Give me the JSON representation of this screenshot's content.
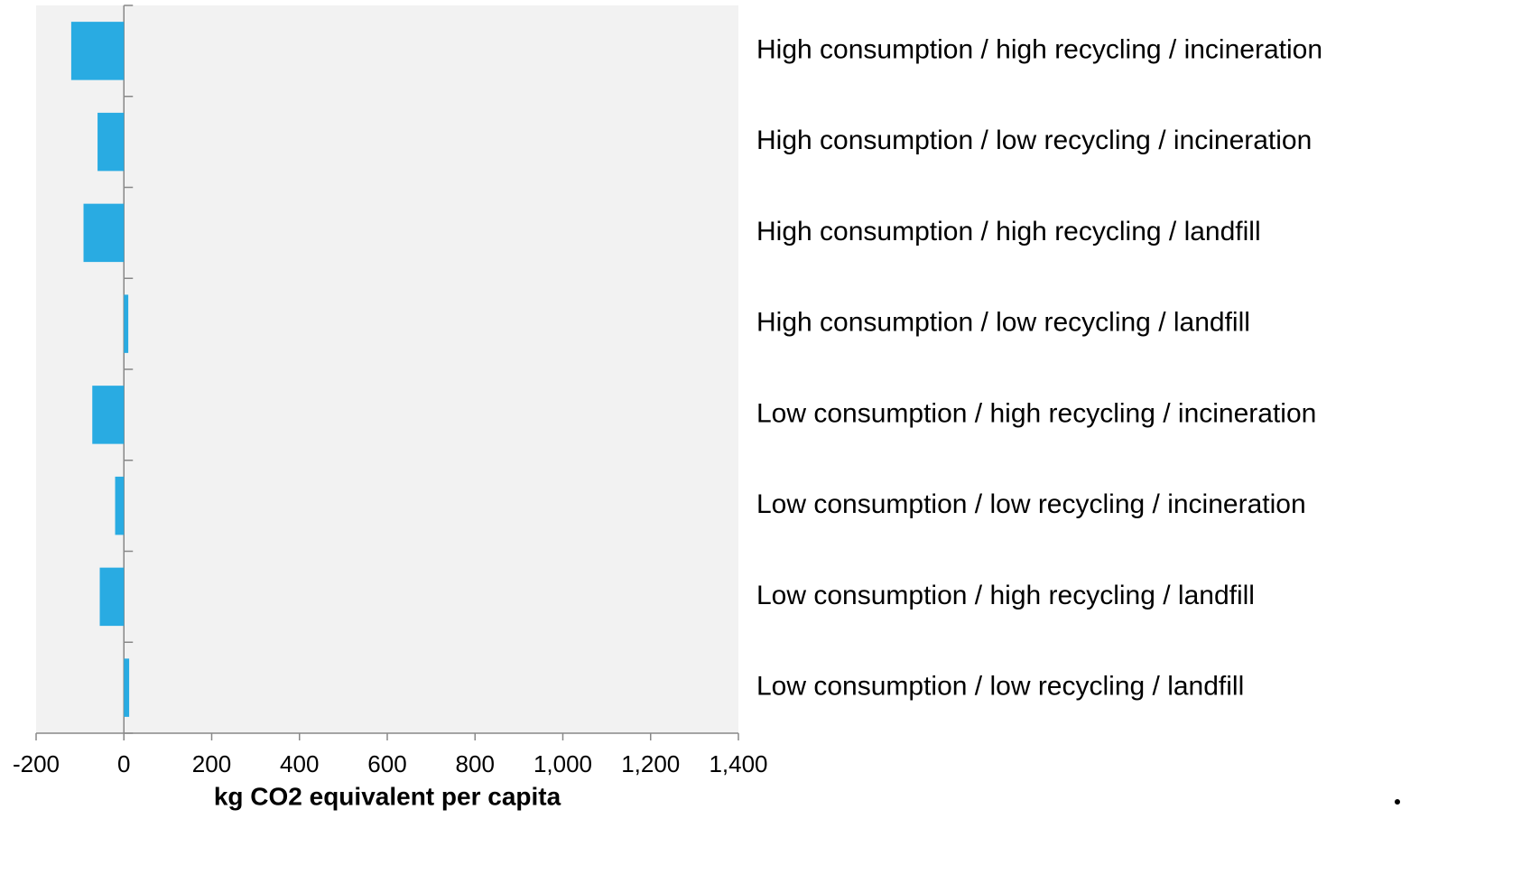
{
  "chart_data": {
    "type": "barh",
    "categories": [
      "High consumption / high recycling / incineration",
      "High consumption / low recycling / incineration",
      "High consumption / high recycling / landfill",
      "High consumption / low recycling / landfill",
      "Low consumption / high recycling / incineration",
      "Low consumption / low recycling / incineration",
      "Low consumption / high recycling / landfill",
      "Low consumption / low recycling / landfill"
    ],
    "values": [
      -120,
      -60,
      -92,
      10,
      -72,
      -20,
      -55,
      12
    ],
    "color": "#29abe2",
    "xlabel": "kg CO2 equivalent per capita",
    "xlim": [
      -200,
      1400
    ],
    "xticks": [
      -200,
      0,
      200,
      400,
      600,
      800,
      {
        "value": 1000,
        "label": "1,000"
      },
      {
        "value": 1200,
        "label": "1,200"
      },
      {
        "value": 1400,
        "label": "1,400"
      }
    ],
    "grid": false
  }
}
